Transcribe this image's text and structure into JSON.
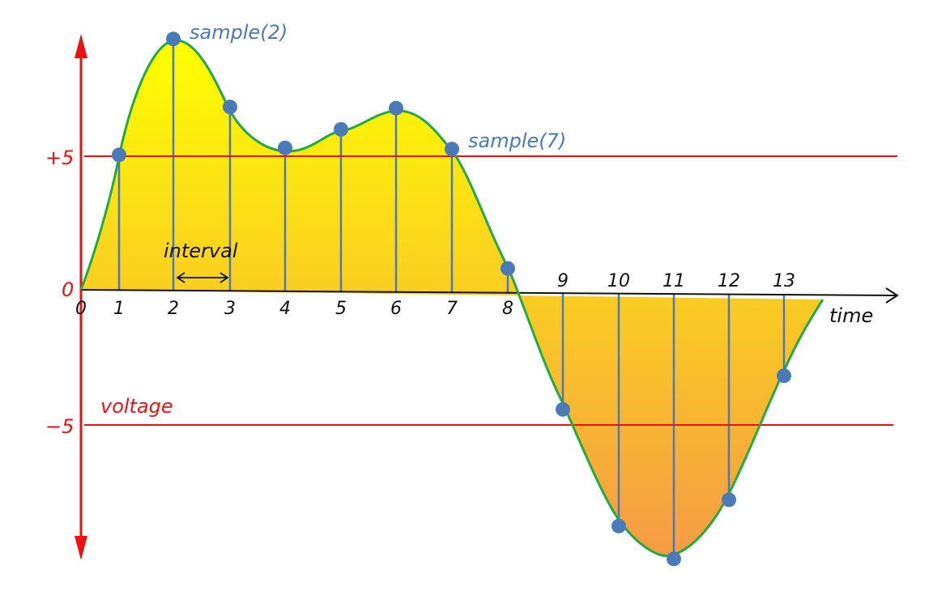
{
  "y_labels": {
    "plus5": "+5",
    "zero": "0",
    "minus5": "−5"
  },
  "axis_labels": {
    "voltage": "voltage",
    "time": "time",
    "interval": "interval"
  },
  "sample_labels": {
    "s2": "sample(2)",
    "s7": "sample(7)"
  },
  "tick_labels": [
    "0",
    "1",
    "2",
    "3",
    "4",
    "5",
    "6",
    "7",
    "8",
    "9",
    "10",
    "11",
    "12",
    "13"
  ],
  "colors": {
    "axis_red": "#ee1111",
    "curve_green": "#22aa44",
    "sample_blue": "#4a7ab8",
    "label_blue": "#4a7ab8",
    "fill_top": "#ffff00",
    "fill_bottom": "#f59a45"
  },
  "chart_data": {
    "type": "line",
    "x": [
      0,
      1,
      2,
      3,
      4,
      5,
      6,
      7,
      8,
      9,
      10,
      11,
      12,
      13
    ],
    "values": [
      0,
      5,
      9.3,
      6.8,
      5.3,
      6.0,
      6.8,
      5.3,
      0.9,
      -4.3,
      -8.6,
      -9.8,
      -7.6,
      -3.0
    ],
    "xlabel": "time",
    "ylabel": "voltage",
    "ylim": [
      -10,
      10
    ],
    "reference_lines": [
      5,
      -5
    ],
    "annotations": [
      "sample(2)",
      "sample(7)",
      "interval"
    ]
  }
}
